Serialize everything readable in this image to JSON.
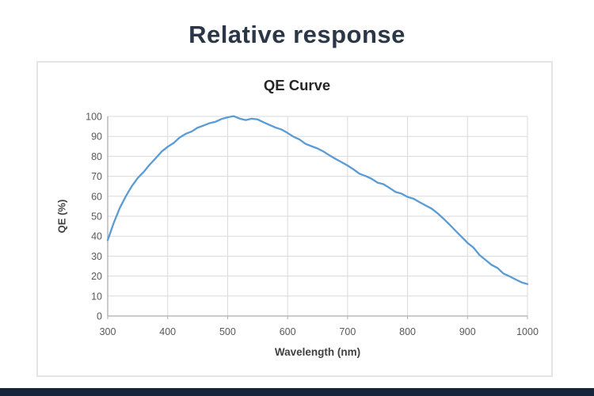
{
  "page": {
    "title": "Relative response",
    "title_color": "#2b3647",
    "footer_bar_color": "#16243c",
    "card_border_color": "#e4e4e4",
    "background_color": "#ffffff"
  },
  "chart_data": {
    "type": "line",
    "title": "QE Curve",
    "xlabel": "Wavelength (nm)",
    "ylabel": "QE (%)",
    "xlim": [
      300,
      1000
    ],
    "ylim": [
      0,
      100
    ],
    "x_ticks": [
      300,
      400,
      500,
      600,
      700,
      800,
      900,
      1000
    ],
    "y_ticks": [
      0,
      10,
      20,
      30,
      40,
      50,
      60,
      70,
      80,
      90,
      100
    ],
    "grid": true,
    "legend_position": "none",
    "line_color": "#5b9bd5",
    "gridline_color": "#dadada",
    "axis_color": "#adadad",
    "series": [
      {
        "name": "QE",
        "x": [
          300,
          310,
          320,
          330,
          340,
          350,
          360,
          370,
          380,
          390,
          400,
          410,
          420,
          430,
          440,
          450,
          460,
          470,
          480,
          490,
          500,
          510,
          520,
          530,
          540,
          550,
          560,
          570,
          580,
          590,
          600,
          610,
          620,
          630,
          640,
          650,
          660,
          670,
          680,
          690,
          700,
          710,
          720,
          730,
          740,
          750,
          760,
          770,
          780,
          790,
          800,
          810,
          820,
          830,
          840,
          850,
          860,
          870,
          880,
          890,
          900,
          910,
          920,
          930,
          940,
          950,
          960,
          970,
          980,
          990,
          1000
        ],
        "values": [
          38,
          47,
          54,
          60,
          65,
          69,
          72.5,
          76,
          79,
          82,
          84.5,
          87,
          89,
          91,
          92.5,
          94,
          95.5,
          96.5,
          97.5,
          98.5,
          99.5,
          100,
          99,
          98.5,
          99,
          98.5,
          97.5,
          96,
          94.5,
          93,
          91.5,
          90,
          88.5,
          86.5,
          85,
          83.5,
          82,
          80.5,
          78.5,
          77,
          75,
          73.5,
          71.5,
          70,
          68.5,
          67,
          66,
          64.5,
          62.5,
          61.5,
          60,
          58.5,
          57,
          55.5,
          53.5,
          51.5,
          49,
          46,
          43,
          40,
          37,
          34,
          31,
          28.5,
          26,
          24,
          21.5,
          20,
          18.5,
          17,
          16
        ]
      }
    ]
  }
}
